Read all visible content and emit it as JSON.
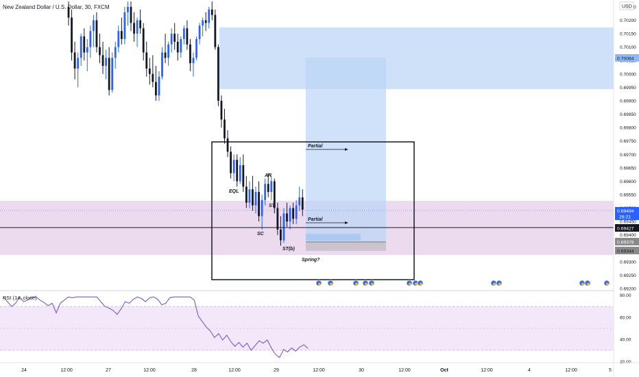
{
  "header": {
    "title": "New Zealand Dollar / U.S. Dollar, 30, FXCM",
    "currency": "USD"
  },
  "price_axis": {
    "ticks": [
      "0.70250",
      "0.70200",
      "0.70150",
      "0.70100",
      "0.70050",
      "0.70000",
      "0.69950",
      "0.69900",
      "0.69850",
      "0.69800",
      "0.69750",
      "0.69700",
      "0.69650",
      "0.69600",
      "0.69550",
      "0.69500",
      "0.69450",
      "0.69400",
      "0.69350",
      "0.69300",
      "0.69250",
      "0.69200"
    ],
    "visible_range": [
      0.692,
      0.7027
    ]
  },
  "price_labels": {
    "target": "0.70064",
    "current": "0.69494",
    "countdown": "28:21",
    "crosshair": "0.69427",
    "stop_top": "0.69378",
    "stop_bottom": "0.69344"
  },
  "time_axis": {
    "labels": [
      "24",
      "12:00",
      "27",
      "12:00",
      "28",
      "12:00",
      "29",
      "12:00",
      "30",
      "12:00",
      "Oct",
      "12:00",
      "4",
      "12:00",
      "5"
    ]
  },
  "annotations": {
    "eql": "EQL",
    "ar": "AR",
    "st": "ST",
    "sc": "SC",
    "st_b": "ST(b)",
    "spring": "Spring?",
    "partial_1": "Partial",
    "partial_2": "Partial"
  },
  "rsi": {
    "title": "RSI (14, close)",
    "ticks": [
      "80.00",
      "60.00",
      "40.00",
      "20.00"
    ],
    "range": [
      20,
      80
    ],
    "band": [
      30,
      70
    ]
  },
  "colors": {
    "bull": "#2962ff",
    "bear": "#131722",
    "supply_zone": "#bbd5f5",
    "demand_zone": "#e9d3ea",
    "position_target": "#bcd6f7",
    "rsi_line": "#7e57c2",
    "current_price": "#2962ff",
    "crosshair": "#131722"
  },
  "chart_data": {
    "type": "candlestick",
    "title": "New Zealand Dollar / U.S. Dollar, 30, FXCM",
    "interval": "30",
    "x_unit": "bar index (30-minute bars, 0 = Sep 26 00:00)",
    "ohlc": [
      [
        0.7025,
        0.7027,
        0.7018,
        0.7021
      ],
      [
        0.7021,
        0.7024,
        0.7005,
        0.7008
      ],
      [
        0.7008,
        0.7012,
        0.6998,
        0.7002
      ],
      [
        0.7002,
        0.7008,
        0.6995,
        0.7006
      ],
      [
        0.7006,
        0.7015,
        0.7003,
        0.7014
      ],
      [
        0.7014,
        0.7017,
        0.7005,
        0.7008
      ],
      [
        0.7008,
        0.7013,
        0.7001,
        0.701
      ],
      [
        0.701,
        0.7018,
        0.7006,
        0.7016
      ],
      [
        0.7016,
        0.7022,
        0.701,
        0.702
      ],
      [
        0.702,
        0.7023,
        0.7008,
        0.701
      ],
      [
        0.701,
        0.7015,
        0.7004,
        0.7007
      ],
      [
        0.7007,
        0.7012,
        0.7,
        0.7003
      ],
      [
        0.7003,
        0.7009,
        0.6998,
        0.7006
      ],
      [
        0.7006,
        0.701,
        0.6992,
        0.6994
      ],
      [
        0.6994,
        0.7008,
        0.6993,
        0.7006
      ],
      [
        0.7006,
        0.7012,
        0.7002,
        0.701
      ],
      [
        0.701,
        0.7018,
        0.7008,
        0.7016
      ],
      [
        0.7016,
        0.7021,
        0.7011,
        0.7013
      ],
      [
        0.7013,
        0.7025,
        0.7011,
        0.7023
      ],
      [
        0.7023,
        0.7027,
        0.7018,
        0.7025
      ],
      [
        0.7025,
        0.7027,
        0.7016,
        0.7019
      ],
      [
        0.7019,
        0.7023,
        0.7012,
        0.7015
      ],
      [
        0.7015,
        0.7021,
        0.701,
        0.702
      ],
      [
        0.702,
        0.7024,
        0.7015,
        0.7017
      ],
      [
        0.7017,
        0.7019,
        0.7005,
        0.7008
      ],
      [
        0.7008,
        0.7012,
        0.6999,
        0.7002
      ],
      [
        0.7002,
        0.7006,
        0.6996,
        0.7
      ],
      [
        0.7,
        0.7007,
        0.6995,
        0.6997
      ],
      [
        0.6997,
        0.7003,
        0.699,
        0.6992
      ],
      [
        0.6992,
        0.7001,
        0.699,
        0.6999
      ],
      [
        0.6999,
        0.701,
        0.6998,
        0.7008
      ],
      [
        0.7008,
        0.7015,
        0.7004,
        0.7006
      ],
      [
        0.7006,
        0.7012,
        0.7003,
        0.7011
      ],
      [
        0.7011,
        0.7017,
        0.7008,
        0.7015
      ],
      [
        0.7015,
        0.7019,
        0.7009,
        0.7012
      ],
      [
        0.7012,
        0.7015,
        0.7005,
        0.7008
      ],
      [
        0.7008,
        0.7014,
        0.7006,
        0.7013
      ],
      [
        0.7013,
        0.7018,
        0.7011,
        0.7017
      ],
      [
        0.7017,
        0.702,
        0.7009,
        0.7011
      ],
      [
        0.7011,
        0.7013,
        0.7001,
        0.7004
      ],
      [
        0.7004,
        0.7008,
        0.6999,
        0.7006
      ],
      [
        0.7006,
        0.7014,
        0.7005,
        0.7013
      ],
      [
        0.7013,
        0.7019,
        0.7011,
        0.7018
      ],
      [
        0.7018,
        0.7021,
        0.7014,
        0.702
      ],
      [
        0.702,
        0.7023,
        0.7016,
        0.7019
      ],
      [
        0.7019,
        0.7025,
        0.7017,
        0.7024
      ],
      [
        0.7024,
        0.7027,
        0.702,
        0.7022
      ],
      [
        0.7022,
        0.7024,
        0.7009,
        0.701
      ],
      [
        0.701,
        0.7011,
        0.6988,
        0.699
      ],
      [
        0.699,
        0.6992,
        0.698,
        0.6983
      ],
      [
        0.6983,
        0.6987,
        0.6974,
        0.6976
      ],
      [
        0.6976,
        0.6979,
        0.6969,
        0.6971
      ],
      [
        0.6971,
        0.6973,
        0.6961,
        0.6963
      ],
      [
        0.6963,
        0.697,
        0.696,
        0.6968
      ],
      [
        0.6968,
        0.697,
        0.6958,
        0.696
      ],
      [
        0.696,
        0.6969,
        0.6959,
        0.6966
      ],
      [
        0.6966,
        0.697,
        0.6956,
        0.6958
      ],
      [
        0.6958,
        0.6962,
        0.695,
        0.6952
      ],
      [
        0.6952,
        0.696,
        0.695,
        0.6957
      ],
      [
        0.6957,
        0.6962,
        0.6949,
        0.6951
      ],
      [
        0.6951,
        0.6958,
        0.6948,
        0.6956
      ],
      [
        0.6956,
        0.696,
        0.6945,
        0.6947
      ],
      [
        0.6947,
        0.6955,
        0.6942,
        0.6953
      ],
      [
        0.6953,
        0.6961,
        0.6951,
        0.6959
      ],
      [
        0.6959,
        0.6963,
        0.6954,
        0.6956
      ],
      [
        0.6956,
        0.6962,
        0.6953,
        0.696
      ],
      [
        0.696,
        0.6961,
        0.6948,
        0.695
      ],
      [
        0.695,
        0.6952,
        0.694,
        0.6942
      ],
      [
        0.6942,
        0.6947,
        0.6936,
        0.6938
      ],
      [
        0.6938,
        0.695,
        0.6937,
        0.6948
      ],
      [
        0.6948,
        0.6952,
        0.6943,
        0.6945
      ],
      [
        0.6945,
        0.6951,
        0.6942,
        0.695
      ],
      [
        0.695,
        0.6952,
        0.6944,
        0.6946
      ],
      [
        0.6946,
        0.6953,
        0.6944,
        0.6951
      ],
      [
        0.6951,
        0.6958,
        0.6949,
        0.6954
      ],
      [
        0.6954,
        0.6957,
        0.6947,
        0.69494
      ]
    ]
  }
}
